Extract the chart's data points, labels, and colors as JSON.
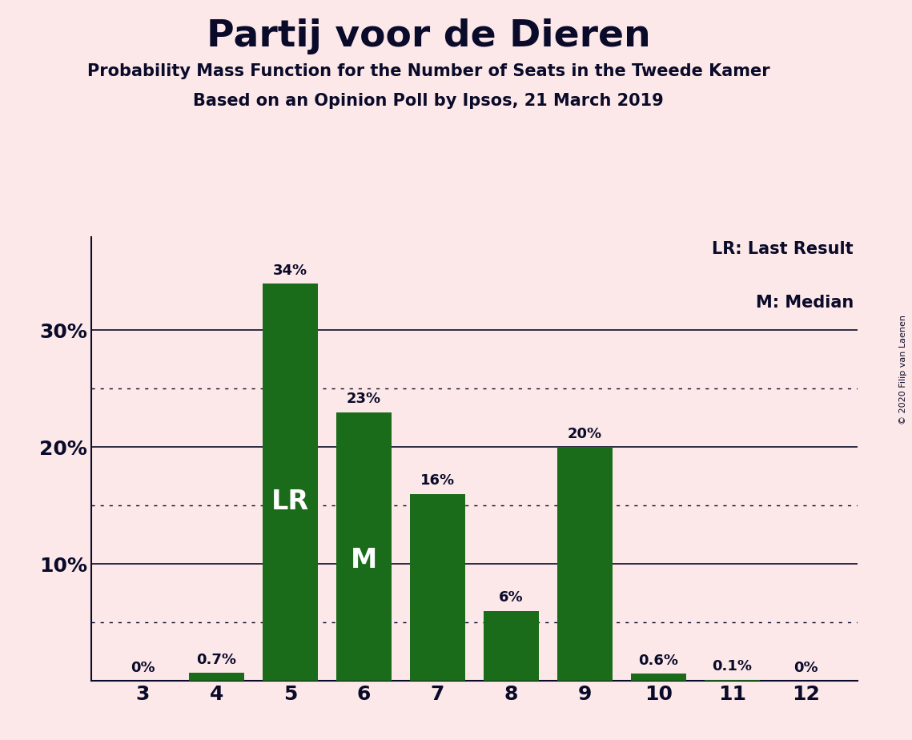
{
  "title": "Partij voor de Dieren",
  "subtitle1": "Probability Mass Function for the Number of Seats in the Tweede Kamer",
  "subtitle2": "Based on an Opinion Poll by Ipsos, 21 March 2019",
  "copyright": "© 2020 Filip van Laenen",
  "seats": [
    3,
    4,
    5,
    6,
    7,
    8,
    9,
    10,
    11,
    12
  ],
  "probabilities": [
    0.0,
    0.7,
    34.0,
    23.0,
    16.0,
    6.0,
    20.0,
    0.6,
    0.1,
    0.0
  ],
  "bar_color": "#1a6b1a",
  "background_color": "#fce8e8",
  "text_color": "#0a0a2a",
  "label_LR": "LR",
  "label_M": "M",
  "LR_seat": 5,
  "M_seat": 6,
  "legend_text1": "LR: Last Result",
  "legend_text2": "M: Median",
  "bar_labels": [
    "0%",
    "0.7%",
    "34%",
    "23%",
    "16%",
    "6%",
    "20%",
    "0.6%",
    "0.1%",
    "0%"
  ],
  "yticks": [
    0,
    10,
    20,
    30
  ],
  "ytick_labels": [
    "",
    "10%",
    "20%",
    "30%"
  ],
  "dotted_yticks": [
    5,
    15,
    25
  ],
  "ylim": [
    0,
    38
  ],
  "bar_width": 0.75
}
